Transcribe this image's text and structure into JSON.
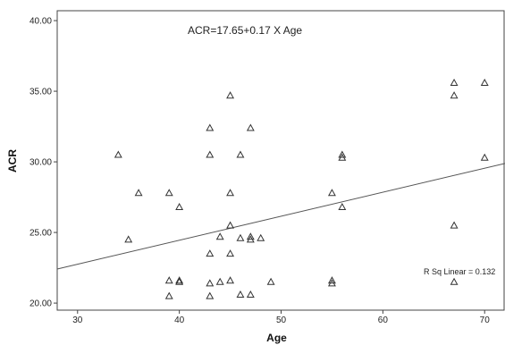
{
  "chart_data": {
    "type": "scatter",
    "title": "",
    "xlabel": "Age",
    "ylabel": "ACR",
    "xlim": [
      28,
      72
    ],
    "ylim": [
      19.5,
      40.7
    ],
    "x_ticks": [
      30,
      40,
      50,
      60,
      70
    ],
    "y_ticks": [
      20.0,
      25.0,
      30.0,
      35.0,
      40.0
    ],
    "x_tick_labels": [
      "30",
      "40",
      "50",
      "60",
      "70"
    ],
    "y_tick_labels": [
      "20.00",
      "25.00",
      "30.00",
      "35.00",
      "40.00"
    ],
    "grid": false,
    "marker": "triangle-open",
    "marker_color": "#333333",
    "line_color": "#555555",
    "points": [
      {
        "x": 34,
        "y": 30.5
      },
      {
        "x": 35,
        "y": 24.5
      },
      {
        "x": 36,
        "y": 27.8
      },
      {
        "x": 39,
        "y": 27.8
      },
      {
        "x": 39,
        "y": 21.6
      },
      {
        "x": 39,
        "y": 20.5
      },
      {
        "x": 40,
        "y": 26.8
      },
      {
        "x": 40,
        "y": 21.6
      },
      {
        "x": 40,
        "y": 21.5
      },
      {
        "x": 43,
        "y": 32.4
      },
      {
        "x": 43,
        "y": 30.5
      },
      {
        "x": 43,
        "y": 23.5
      },
      {
        "x": 43,
        "y": 21.4
      },
      {
        "x": 43,
        "y": 20.5
      },
      {
        "x": 44,
        "y": 24.7
      },
      {
        "x": 44,
        "y": 21.5
      },
      {
        "x": 45,
        "y": 34.7
      },
      {
        "x": 45,
        "y": 27.8
      },
      {
        "x": 45,
        "y": 25.5
      },
      {
        "x": 45,
        "y": 23.5
      },
      {
        "x": 45,
        "y": 21.6
      },
      {
        "x": 46,
        "y": 30.5
      },
      {
        "x": 46,
        "y": 24.6
      },
      {
        "x": 46,
        "y": 20.6
      },
      {
        "x": 47,
        "y": 32.4
      },
      {
        "x": 47,
        "y": 24.7
      },
      {
        "x": 47,
        "y": 24.5
      },
      {
        "x": 47,
        "y": 20.6
      },
      {
        "x": 48,
        "y": 24.6
      },
      {
        "x": 49,
        "y": 21.5
      },
      {
        "x": 55,
        "y": 27.8
      },
      {
        "x": 55,
        "y": 21.6
      },
      {
        "x": 55,
        "y": 21.4
      },
      {
        "x": 56,
        "y": 30.5
      },
      {
        "x": 56,
        "y": 30.3
      },
      {
        "x": 56,
        "y": 26.8
      },
      {
        "x": 67,
        "y": 35.6
      },
      {
        "x": 67,
        "y": 34.7
      },
      {
        "x": 67,
        "y": 25.5
      },
      {
        "x": 67,
        "y": 21.5
      },
      {
        "x": 70,
        "y": 35.6
      },
      {
        "x": 70,
        "y": 30.3
      }
    ],
    "fit_line": {
      "intercept": 17.65,
      "slope": 0.17
    },
    "annotations": {
      "equation": "ACR=17.65+0.17 X Age",
      "r_squared": "R Sq Linear = 0.132"
    }
  }
}
